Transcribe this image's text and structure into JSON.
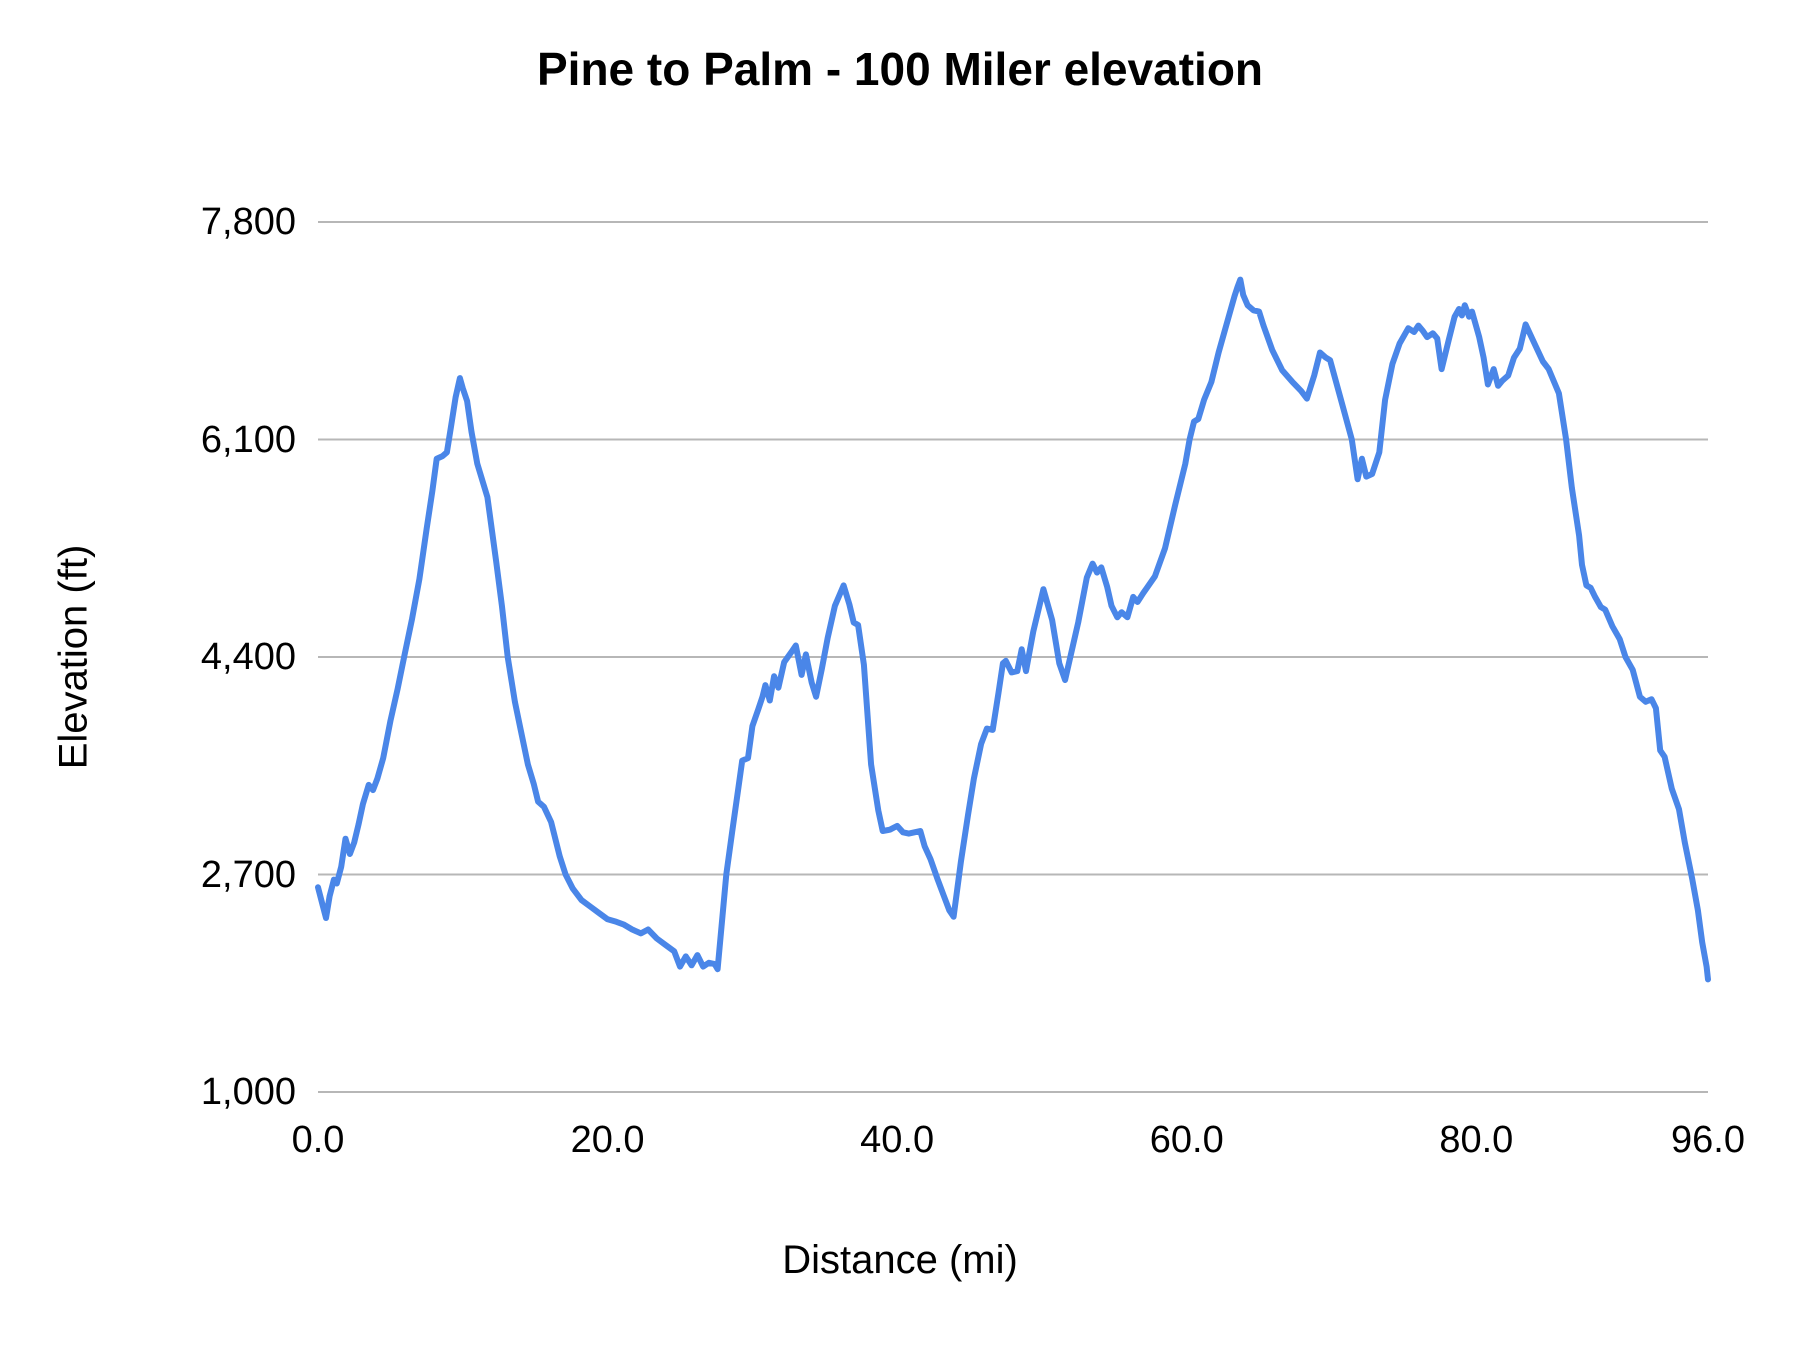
{
  "chart": {
    "title": "Pine to Palm - 100 Miler elevation",
    "x_axis_title": "Distance (mi)",
    "y_axis_title": "Elevation (ft)"
  },
  "chart_data": {
    "type": "line",
    "title": "Pine to Palm - 100 Miler elevation",
    "xlabel": "Distance (mi)",
    "ylabel": "Elevation (ft)",
    "xlim": [
      0,
      96
    ],
    "ylim": [
      1000,
      7800
    ],
    "grid": "horizontal-only",
    "legend": "none",
    "line_color": "#4a86e8",
    "gridline_color": "#b7b7b7",
    "background_color": "#ffffff",
    "x_ticks": [
      {
        "value": 0,
        "label": "0.0"
      },
      {
        "value": 20,
        "label": "20.0"
      },
      {
        "value": 40,
        "label": "40.0"
      },
      {
        "value": 60,
        "label": "60.0"
      },
      {
        "value": 80,
        "label": "80.0"
      },
      {
        "value": 96,
        "label": "96.0"
      }
    ],
    "y_ticks": [
      {
        "value": 7800,
        "label": "7,800"
      },
      {
        "value": 6100,
        "label": "6,100"
      },
      {
        "value": 4400,
        "label": "4,400"
      },
      {
        "value": 2700,
        "label": "2,700"
      },
      {
        "value": 1000,
        "label": "1,000"
      }
    ],
    "series": [
      {
        "name": "elevation",
        "points": [
          [
            0.0,
            2600
          ],
          [
            0.3,
            2470
          ],
          [
            0.55,
            2360
          ],
          [
            0.8,
            2530
          ],
          [
            1.1,
            2660
          ],
          [
            1.3,
            2630
          ],
          [
            1.6,
            2760
          ],
          [
            1.9,
            2980
          ],
          [
            2.2,
            2860
          ],
          [
            2.5,
            2950
          ],
          [
            2.8,
            3090
          ],
          [
            3.1,
            3250
          ],
          [
            3.5,
            3400
          ],
          [
            3.8,
            3360
          ],
          [
            4.1,
            3450
          ],
          [
            4.5,
            3610
          ],
          [
            5.0,
            3900
          ],
          [
            5.5,
            4150
          ],
          [
            6.0,
            4430
          ],
          [
            6.5,
            4700
          ],
          [
            7.0,
            5010
          ],
          [
            7.5,
            5400
          ],
          [
            7.9,
            5700
          ],
          [
            8.2,
            5950
          ],
          [
            8.6,
            5970
          ],
          [
            8.9,
            6000
          ],
          [
            9.2,
            6210
          ],
          [
            9.5,
            6430
          ],
          [
            9.8,
            6580
          ],
          [
            10.0,
            6500
          ],
          [
            10.3,
            6400
          ],
          [
            10.6,
            6160
          ],
          [
            11.0,
            5910
          ],
          [
            11.7,
            5650
          ],
          [
            12.3,
            5150
          ],
          [
            12.7,
            4800
          ],
          [
            13.1,
            4400
          ],
          [
            13.6,
            4050
          ],
          [
            14.0,
            3830
          ],
          [
            14.5,
            3560
          ],
          [
            14.9,
            3410
          ],
          [
            15.2,
            3270
          ],
          [
            15.6,
            3230
          ],
          [
            16.1,
            3110
          ],
          [
            16.7,
            2840
          ],
          [
            17.1,
            2700
          ],
          [
            17.6,
            2590
          ],
          [
            18.2,
            2500
          ],
          [
            18.8,
            2450
          ],
          [
            19.4,
            2400
          ],
          [
            20.0,
            2350
          ],
          [
            20.6,
            2330
          ],
          [
            21.1,
            2310
          ],
          [
            21.7,
            2270
          ],
          [
            22.3,
            2240
          ],
          [
            22.8,
            2270
          ],
          [
            23.4,
            2200
          ],
          [
            24.0,
            2150
          ],
          [
            24.6,
            2100
          ],
          [
            25.0,
            1980
          ],
          [
            25.4,
            2060
          ],
          [
            25.8,
            1990
          ],
          [
            26.2,
            2070
          ],
          [
            26.6,
            1980
          ],
          [
            27.0,
            2010
          ],
          [
            27.4,
            2000
          ],
          [
            27.6,
            1960
          ],
          [
            28.2,
            2700
          ],
          [
            28.6,
            3030
          ],
          [
            29.0,
            3350
          ],
          [
            29.3,
            3590
          ],
          [
            29.7,
            3610
          ],
          [
            30.0,
            3860
          ],
          [
            30.4,
            3990
          ],
          [
            30.7,
            4090
          ],
          [
            30.9,
            4180
          ],
          [
            31.2,
            4060
          ],
          [
            31.5,
            4250
          ],
          [
            31.8,
            4160
          ],
          [
            32.2,
            4360
          ],
          [
            32.7,
            4440
          ],
          [
            33.0,
            4490
          ],
          [
            33.4,
            4260
          ],
          [
            33.7,
            4420
          ],
          [
            34.1,
            4200
          ],
          [
            34.4,
            4090
          ],
          [
            34.8,
            4310
          ],
          [
            35.2,
            4550
          ],
          [
            35.7,
            4800
          ],
          [
            36.3,
            4960
          ],
          [
            36.7,
            4810
          ],
          [
            37.0,
            4670
          ],
          [
            37.3,
            4650
          ],
          [
            37.7,
            4340
          ],
          [
            38.2,
            3560
          ],
          [
            38.7,
            3200
          ],
          [
            39.0,
            3040
          ],
          [
            39.5,
            3050
          ],
          [
            40.0,
            3080
          ],
          [
            40.4,
            3030
          ],
          [
            40.8,
            3020
          ],
          [
            41.2,
            3030
          ],
          [
            41.6,
            3040
          ],
          [
            41.9,
            2920
          ],
          [
            42.3,
            2820
          ],
          [
            42.8,
            2660
          ],
          [
            43.2,
            2540
          ],
          [
            43.6,
            2420
          ],
          [
            43.9,
            2370
          ],
          [
            44.4,
            2800
          ],
          [
            44.9,
            3170
          ],
          [
            45.3,
            3450
          ],
          [
            45.8,
            3720
          ],
          [
            46.2,
            3840
          ],
          [
            46.6,
            3830
          ],
          [
            47.0,
            4120
          ],
          [
            47.3,
            4350
          ],
          [
            47.5,
            4370
          ],
          [
            47.9,
            4280
          ],
          [
            48.3,
            4290
          ],
          [
            48.6,
            4460
          ],
          [
            48.9,
            4290
          ],
          [
            49.4,
            4600
          ],
          [
            50.1,
            4930
          ],
          [
            50.7,
            4690
          ],
          [
            51.2,
            4350
          ],
          [
            51.6,
            4220
          ],
          [
            52.0,
            4420
          ],
          [
            52.5,
            4670
          ],
          [
            53.1,
            5020
          ],
          [
            53.5,
            5130
          ],
          [
            53.8,
            5060
          ],
          [
            54.1,
            5100
          ],
          [
            54.5,
            4950
          ],
          [
            54.8,
            4800
          ],
          [
            55.2,
            4710
          ],
          [
            55.5,
            4750
          ],
          [
            55.9,
            4710
          ],
          [
            56.3,
            4870
          ],
          [
            56.6,
            4830
          ],
          [
            57.0,
            4900
          ],
          [
            57.8,
            5030
          ],
          [
            58.5,
            5250
          ],
          [
            59.2,
            5590
          ],
          [
            59.9,
            5910
          ],
          [
            60.2,
            6100
          ],
          [
            60.5,
            6240
          ],
          [
            60.8,
            6260
          ],
          [
            61.2,
            6410
          ],
          [
            61.7,
            6550
          ],
          [
            62.2,
            6780
          ],
          [
            62.9,
            7060
          ],
          [
            63.3,
            7220
          ],
          [
            63.5,
            7290
          ],
          [
            63.7,
            7350
          ],
          [
            63.9,
            7230
          ],
          [
            64.2,
            7150
          ],
          [
            64.6,
            7110
          ],
          [
            65.0,
            7100
          ],
          [
            65.3,
            6990
          ],
          [
            65.9,
            6800
          ],
          [
            66.6,
            6640
          ],
          [
            67.3,
            6550
          ],
          [
            67.9,
            6480
          ],
          [
            68.3,
            6420
          ],
          [
            68.8,
            6600
          ],
          [
            69.2,
            6780
          ],
          [
            69.6,
            6740
          ],
          [
            69.9,
            6720
          ],
          [
            70.7,
            6390
          ],
          [
            71.4,
            6100
          ],
          [
            71.8,
            5790
          ],
          [
            72.1,
            5950
          ],
          [
            72.4,
            5810
          ],
          [
            72.8,
            5830
          ],
          [
            73.3,
            6000
          ],
          [
            73.7,
            6410
          ],
          [
            74.2,
            6690
          ],
          [
            74.7,
            6850
          ],
          [
            75.3,
            6970
          ],
          [
            75.7,
            6940
          ],
          [
            76.0,
            6990
          ],
          [
            76.3,
            6950
          ],
          [
            76.6,
            6900
          ],
          [
            77.0,
            6930
          ],
          [
            77.3,
            6890
          ],
          [
            77.6,
            6650
          ],
          [
            78.1,
            6880
          ],
          [
            78.5,
            7060
          ],
          [
            78.8,
            7120
          ],
          [
            79.0,
            7070
          ],
          [
            79.2,
            7150
          ],
          [
            79.5,
            7060
          ],
          [
            79.7,
            7100
          ],
          [
            80.2,
            6900
          ],
          [
            80.5,
            6740
          ],
          [
            80.8,
            6530
          ],
          [
            81.2,
            6650
          ],
          [
            81.5,
            6520
          ],
          [
            81.8,
            6560
          ],
          [
            82.2,
            6600
          ],
          [
            82.6,
            6740
          ],
          [
            83.0,
            6810
          ],
          [
            83.4,
            7000
          ],
          [
            84.1,
            6830
          ],
          [
            84.6,
            6710
          ],
          [
            85.0,
            6650
          ],
          [
            85.7,
            6460
          ],
          [
            86.2,
            6100
          ],
          [
            86.6,
            5720
          ],
          [
            87.1,
            5350
          ],
          [
            87.3,
            5120
          ],
          [
            87.6,
            4960
          ],
          [
            87.9,
            4940
          ],
          [
            88.2,
            4870
          ],
          [
            88.6,
            4790
          ],
          [
            88.9,
            4770
          ],
          [
            89.4,
            4640
          ],
          [
            89.9,
            4540
          ],
          [
            90.3,
            4400
          ],
          [
            90.8,
            4300
          ],
          [
            91.3,
            4090
          ],
          [
            91.7,
            4050
          ],
          [
            92.1,
            4070
          ],
          [
            92.4,
            4000
          ],
          [
            92.7,
            3670
          ],
          [
            93.0,
            3620
          ],
          [
            93.5,
            3370
          ],
          [
            94.0,
            3210
          ],
          [
            94.4,
            2950
          ],
          [
            94.9,
            2670
          ],
          [
            95.3,
            2420
          ],
          [
            95.6,
            2170
          ],
          [
            95.9,
            1980
          ],
          [
            96.0,
            1880
          ]
        ]
      }
    ]
  }
}
